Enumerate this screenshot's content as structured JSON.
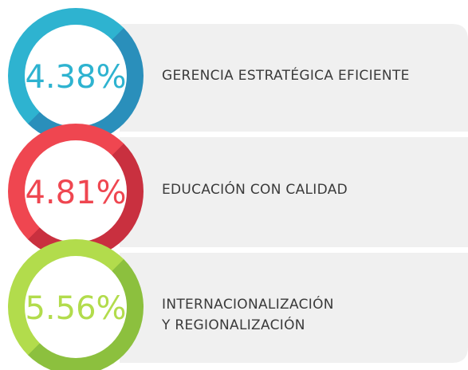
{
  "items": [
    {
      "value": "4.38%",
      "label": [
        "GERENCIA ESTRATÉGICA EFICIENTE"
      ]
    },
    {
      "value": "4.81%",
      "label": [
        "EDUCACIÓN CON CALIDAD"
      ]
    },
    {
      "value": "5.56%",
      "label": [
        "INTERNACIONALIZACIÓN",
        "Y REGIONALIZACIÓN"
      ]
    }
  ]
}
